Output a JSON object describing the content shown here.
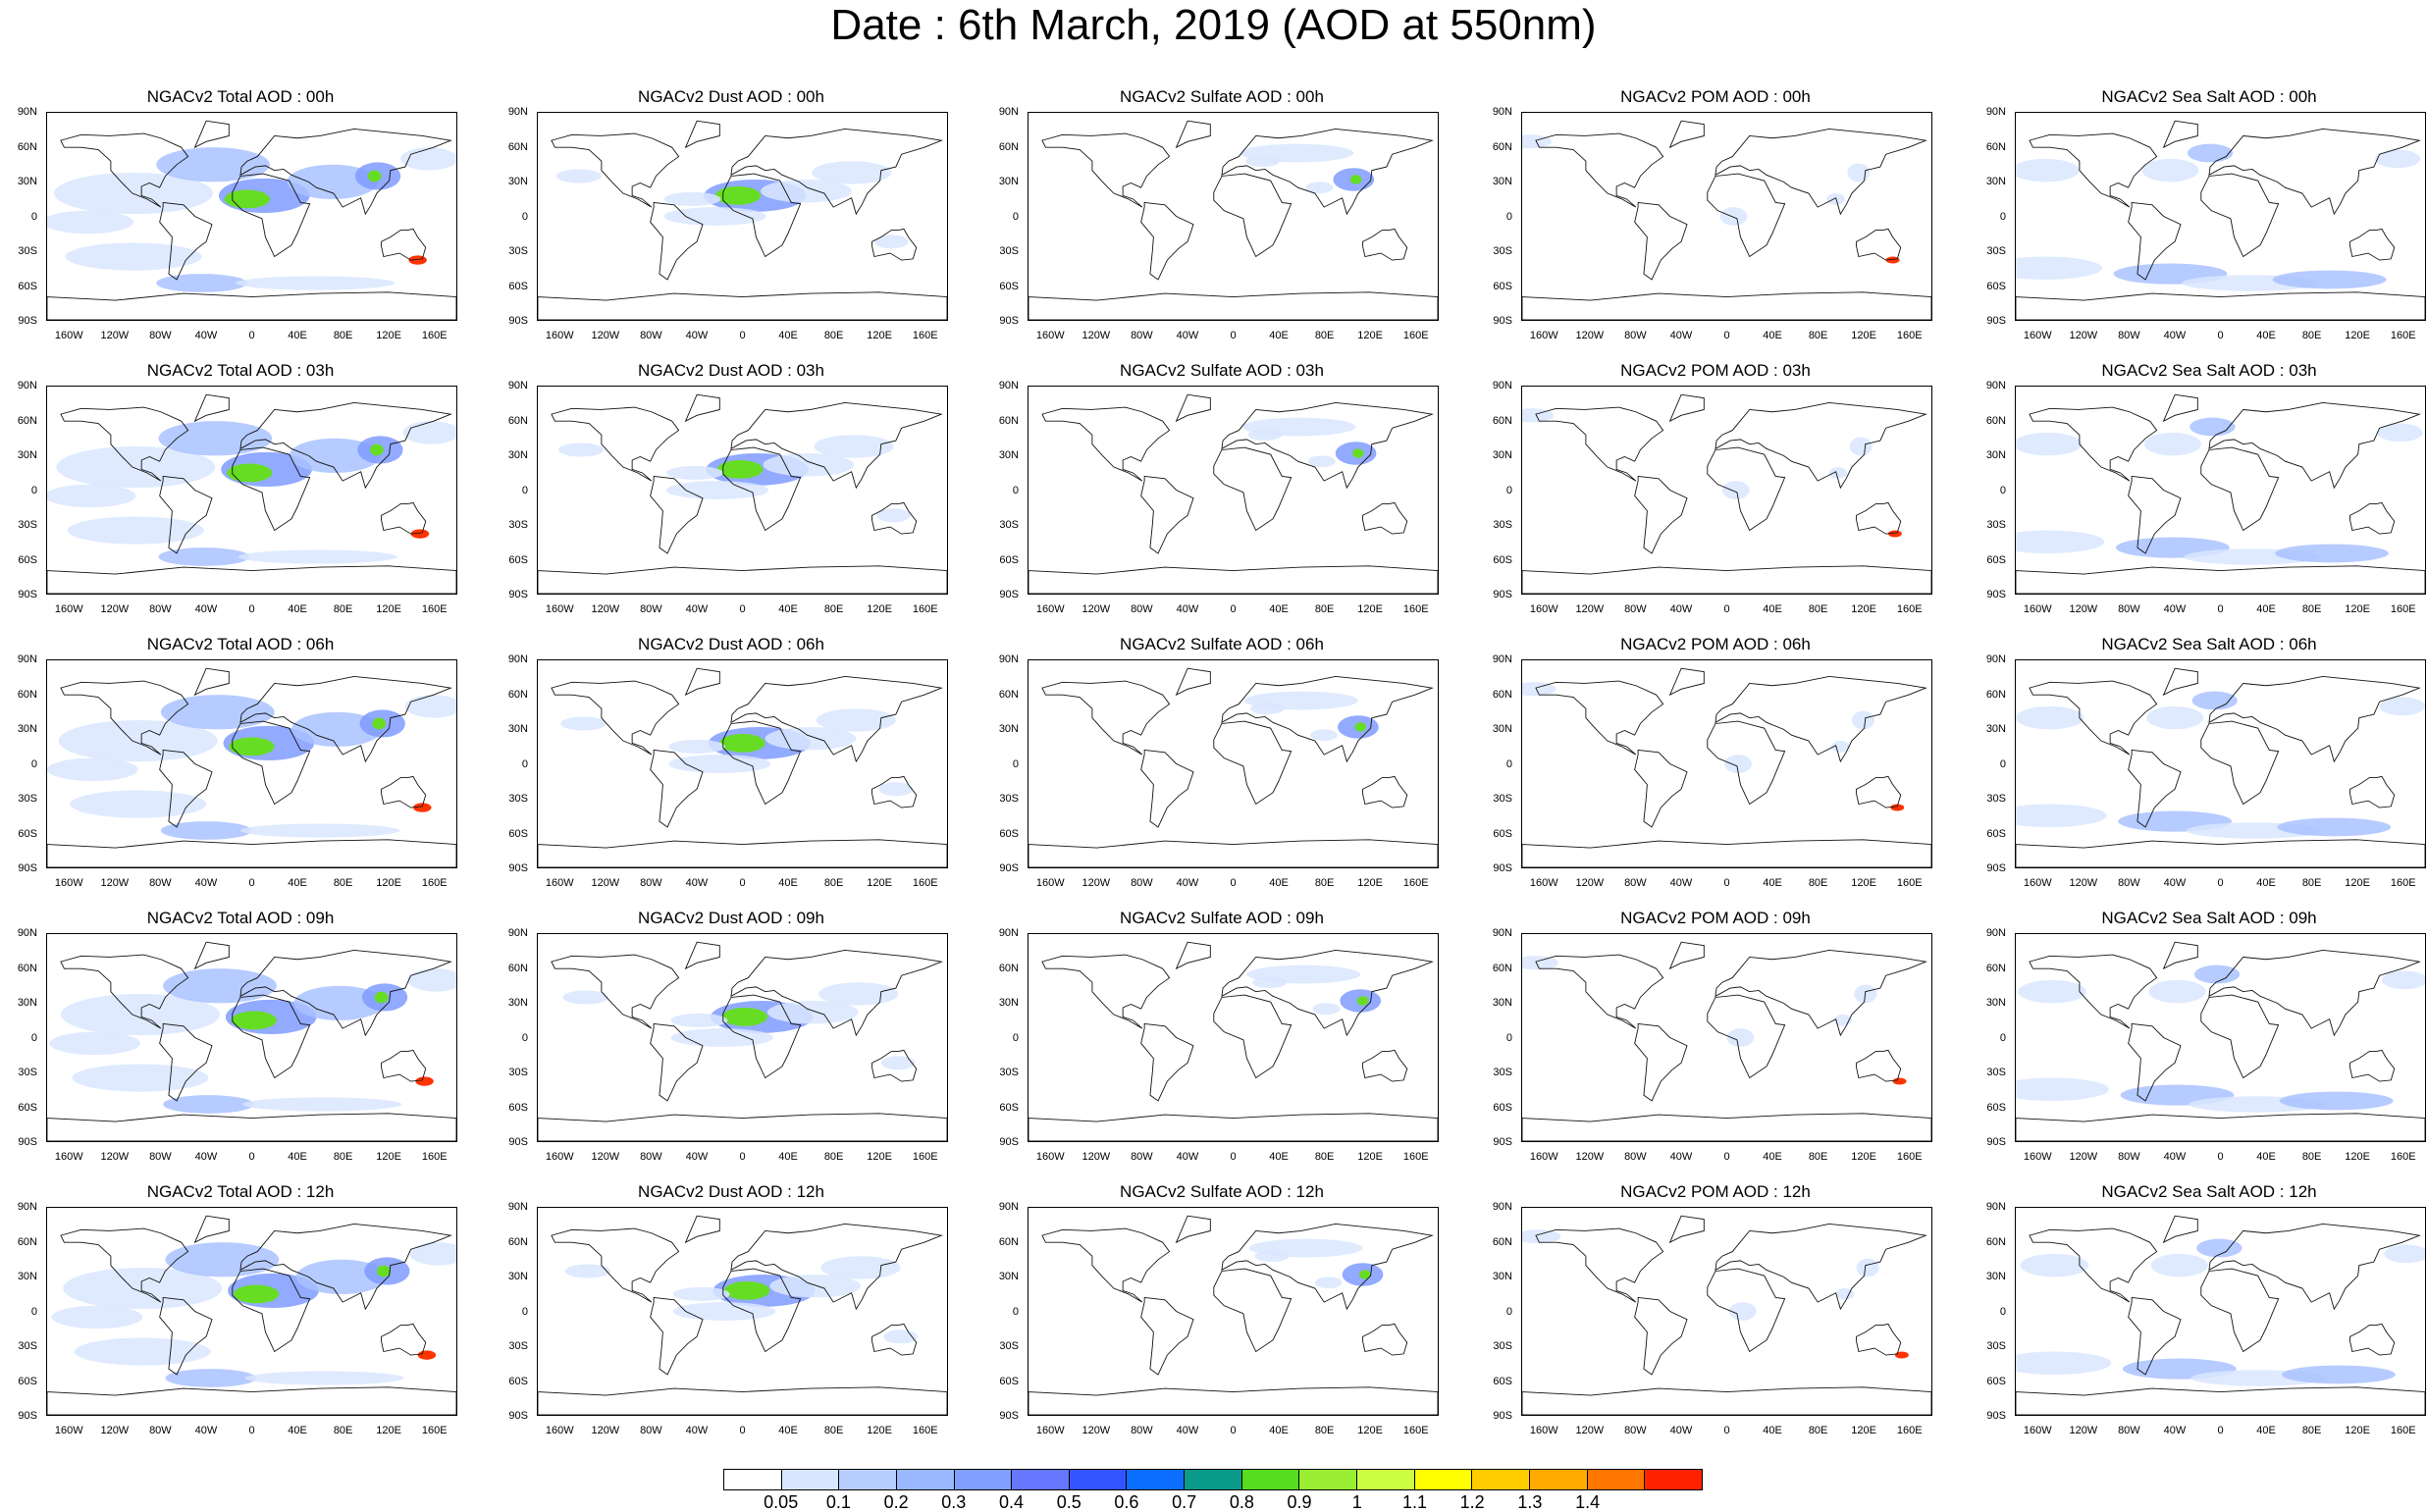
{
  "title": "Date : 6th March, 2019 (AOD at 550nm)",
  "panels": [
    [
      "NGACv2 Total AOD : 00h",
      "NGACv2 Dust AOD : 00h",
      "NGACv2 Sulfate AOD : 00h",
      "NGACv2 POM AOD : 00h",
      "NGACv2 Sea Salt AOD : 00h"
    ],
    [
      "NGACv2 Total AOD : 03h",
      "NGACv2 Dust AOD : 03h",
      "NGACv2 Sulfate AOD : 03h",
      "NGACv2 POM AOD : 03h",
      "NGACv2 Sea Salt AOD : 03h"
    ],
    [
      "NGACv2 Total AOD : 06h",
      "NGACv2 Dust AOD : 06h",
      "NGACv2 Sulfate AOD : 06h",
      "NGACv2 POM AOD : 06h",
      "NGACv2 Sea Salt AOD : 06h"
    ],
    [
      "NGACv2 Total AOD : 09h",
      "NGACv2 Dust AOD : 09h",
      "NGACv2 Sulfate AOD : 09h",
      "NGACv2 POM AOD : 09h",
      "NGACv2 Sea Salt  AOD : 09h"
    ],
    [
      "NGACv2 Total AOD :  12h",
      "NGACv2 Dust AOD : 12h",
      "NGACv2 Sulfate AOD : 12h",
      "NGACv2 POM  AOD : 12h",
      "NGACv2 Sea Salt  AOD : 12h"
    ]
  ],
  "lat_labels": [
    "90N",
    "60N",
    "30N",
    "0",
    "30S",
    "60S",
    "90S"
  ],
  "lon_labels": [
    "160W",
    "120W",
    "80W",
    "40W",
    "0",
    "40E",
    "80E",
    "120E",
    "160E"
  ],
  "colorbar": {
    "labels": [
      "0.05",
      "0.1",
      "0.2",
      "0.3",
      "0.4",
      "0.5",
      "0.6",
      "0.7",
      "0.8",
      "0.9",
      "1",
      "1.1",
      "1.2",
      "1.3",
      "1.4"
    ],
    "colors": [
      "#ffffff",
      "#d9e6ff",
      "#b8ceff",
      "#99b8ff",
      "#809fff",
      "#6677ff",
      "#3355ff",
      "#0a6fff",
      "#0a9a8a",
      "#55dd22",
      "#99ee33",
      "#ccff44",
      "#ffff00",
      "#ffcc00",
      "#ffaa00",
      "#ff7700",
      "#ff2200"
    ]
  },
  "aerosol_shade_colors": {
    "light": "#d9e6ff",
    "medium": "#a9c2ff",
    "strong": "#7f9bff",
    "hotspot_green": "#66dd22",
    "hotspot_yellow": "#ffee00",
    "hotspot_red": "#ff3300"
  }
}
